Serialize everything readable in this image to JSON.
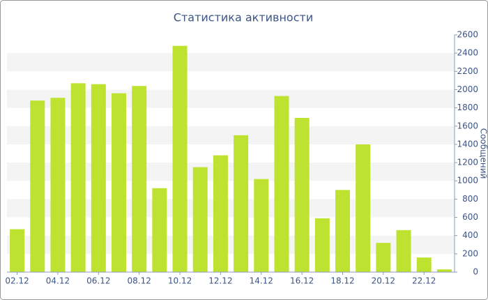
{
  "chart_data": {
    "type": "bar",
    "title": "Статистика активности",
    "y_label": "Сообщений",
    "categories": [
      "02.12",
      null,
      "04.12",
      null,
      "06.12",
      null,
      "08.12",
      null,
      "10.12",
      null,
      "12.12",
      null,
      "14.12",
      null,
      "16.12",
      null,
      "18.12",
      null,
      "20.12",
      null,
      "22.12",
      null
    ],
    "values": [
      470,
      1880,
      1910,
      2070,
      2060,
      1960,
      2040,
      920,
      2480,
      1150,
      1280,
      1500,
      1020,
      1930,
      1690,
      590,
      900,
      1400,
      320,
      460,
      160,
      30
    ],
    "color": "#bde22f",
    "ylim": [
      0,
      2600
    ],
    "yticks": [
      0,
      200,
      400,
      600,
      800,
      1000,
      1200,
      1400,
      1600,
      1800,
      2000,
      2200,
      2400,
      2600
    ],
    "grid": true
  }
}
